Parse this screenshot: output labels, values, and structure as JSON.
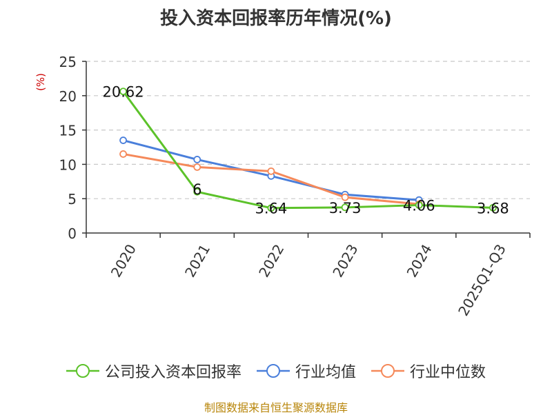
{
  "chart_data": {
    "type": "line",
    "title": "投入资本回报率历年情况(%)",
    "ylabel": "(%)",
    "categories": [
      "2020",
      "2021",
      "2022",
      "2023",
      "2024",
      "2025Q1-Q3"
    ],
    "ylim": [
      0,
      25
    ],
    "yticks": [
      0,
      5,
      10,
      15,
      20,
      25
    ],
    "grid": true,
    "legend_position": "bottom",
    "series": [
      {
        "name": "公司投入资本回报率",
        "color": "#5cc22a",
        "values": [
          20.62,
          6,
          3.64,
          3.73,
          4.06,
          3.68
        ],
        "labels": [
          "20.62",
          "6",
          "3.64",
          "3.73",
          "4.06",
          "3.68"
        ]
      },
      {
        "name": "行业均值",
        "color": "#4a7fdb",
        "values": [
          13.5,
          10.7,
          8.3,
          5.6,
          4.8,
          null
        ]
      },
      {
        "name": "行业中位数",
        "color": "#f5895a",
        "values": [
          11.5,
          9.6,
          9.0,
          5.2,
          4.2,
          null
        ]
      }
    ]
  },
  "source": "制图数据来自恒生聚源数据库"
}
